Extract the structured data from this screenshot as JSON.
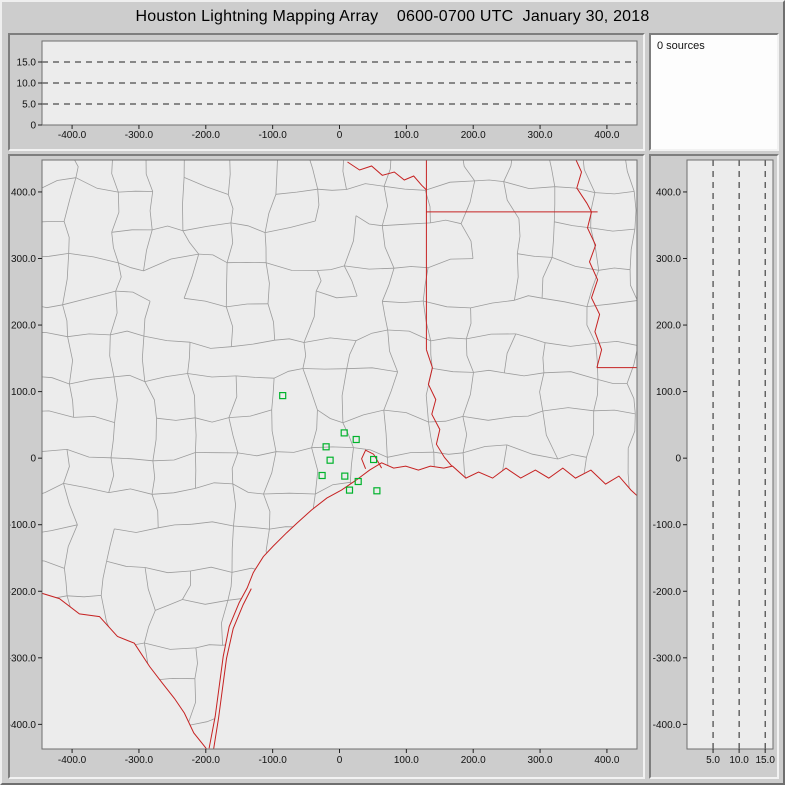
{
  "window": {
    "title": "Houston Lightning Mapping Array    0600-0700 UTC  January 30, 2018"
  },
  "sources_panel": {
    "label": "0 sources"
  },
  "colors": {
    "window_bg": "#cdcdcd",
    "plot_bg": "#ececec",
    "frame": "#6e6e6e",
    "tick": "#222222",
    "grid_dash": "#222222",
    "county": "#9c9c9c",
    "state": "#c62222",
    "station": "#00b32c"
  },
  "chart_data": [
    {
      "id": "altitude-vs-ew",
      "type": "scatter",
      "title": "",
      "xlabel": "",
      "ylabel": "",
      "xlim": [
        -445,
        445
      ],
      "ylim": [
        0,
        20
      ],
      "x_ticks": [
        {
          "v": -400,
          "label": "-400.0"
        },
        {
          "v": -300,
          "label": "-300.0"
        },
        {
          "v": -200,
          "label": "-200.0"
        },
        {
          "v": -100,
          "label": "-100.0"
        },
        {
          "v": 0,
          "label": "0"
        },
        {
          "v": 100,
          "label": "100.0"
        },
        {
          "v": 200,
          "label": "200.0"
        },
        {
          "v": 300,
          "label": "300.0"
        },
        {
          "v": 400,
          "label": "400.0"
        }
      ],
      "y_ticks": [
        {
          "v": 15,
          "label": "15.0"
        },
        {
          "v": 10,
          "label": "10.0"
        },
        {
          "v": 5,
          "label": "5.0"
        },
        {
          "v": 0,
          "label": "0"
        }
      ],
      "dashed_y": [
        5,
        10,
        15
      ],
      "points": []
    },
    {
      "id": "plan-view-map",
      "type": "scatter",
      "title": "",
      "xlabel": "",
      "ylabel": "",
      "xlim": [
        -445,
        445
      ],
      "ylim": [
        -437,
        448
      ],
      "x_ticks": [
        {
          "v": -400,
          "label": "-400.0"
        },
        {
          "v": -300,
          "label": "-300.0"
        },
        {
          "v": -200,
          "label": "-200.0"
        },
        {
          "v": -100,
          "label": "-100.0"
        },
        {
          "v": 0,
          "label": "0"
        },
        {
          "v": 100,
          "label": "100.0"
        },
        {
          "v": 200,
          "label": "200.0"
        },
        {
          "v": 300,
          "label": "300.0"
        },
        {
          "v": 400,
          "label": "400.0"
        }
      ],
      "y_ticks": [
        {
          "v": 400,
          "label": "400.0"
        },
        {
          "v": 300,
          "label": "300.0"
        },
        {
          "v": 200,
          "label": "200.0"
        },
        {
          "v": 100,
          "label": "100.0"
        },
        {
          "v": 0,
          "label": "0"
        },
        {
          "v": -100,
          "label": "-100.0"
        },
        {
          "v": -200,
          "label": "-200.0"
        },
        {
          "v": -300,
          "label": "-300.0"
        },
        {
          "v": -400,
          "label": "-400.0"
        }
      ],
      "points": [],
      "layers": {
        "stations_km": [
          [
            -85,
            94
          ],
          [
            7,
            38
          ],
          [
            25,
            28
          ],
          [
            -20,
            17
          ],
          [
            -14,
            -3
          ],
          [
            51,
            -2
          ],
          [
            -26,
            -26
          ],
          [
            8,
            -27
          ],
          [
            28,
            -35
          ],
          [
            15,
            -48
          ],
          [
            56,
            -49
          ]
        ],
        "red_boundaries_km": {
          "coastline": [
            [
              -195,
              -436
            ],
            [
              -186,
              -388
            ],
            [
              -180,
              -343
            ],
            [
              -174,
              -298
            ],
            [
              -165,
              -253
            ],
            [
              -150,
              -217
            ],
            [
              -138,
              -195
            ],
            [
              -129,
              -172
            ],
            [
              -114,
              -148
            ],
            [
              -99,
              -132
            ],
            [
              -79,
              -112
            ],
            [
              -63,
              -97
            ],
            [
              -42,
              -78
            ],
            [
              -19,
              -60
            ],
            [
              3,
              -48
            ],
            [
              25,
              -33
            ],
            [
              45,
              -18
            ],
            [
              63,
              -7
            ],
            [
              81,
              -15
            ],
            [
              99,
              -12
            ],
            [
              118,
              -18
            ],
            [
              136,
              -12
            ],
            [
              156,
              -15
            ],
            [
              169,
              -12
            ],
            [
              189,
              -30
            ],
            [
              208,
              -21
            ],
            [
              229,
              -30
            ],
            [
              249,
              -15
            ],
            [
              271,
              -30
            ],
            [
              293,
              -18
            ],
            [
              313,
              -30
            ],
            [
              334,
              -15
            ],
            [
              353,
              -30
            ],
            [
              376,
              -18
            ],
            [
              398,
              -39
            ],
            [
              418,
              -27
            ],
            [
              436,
              -48
            ],
            [
              449,
              -60
            ]
          ],
          "rio_grande": [
            [
              -452,
              -201
            ],
            [
              -419,
              -211
            ],
            [
              -389,
              -234
            ],
            [
              -359,
              -238
            ],
            [
              -332,
              -268
            ],
            [
              -307,
              -278
            ],
            [
              -284,
              -313
            ],
            [
              -265,
              -338
            ],
            [
              -247,
              -361
            ],
            [
              -232,
              -383
            ],
            [
              -218,
              -413
            ],
            [
              -202,
              -433
            ],
            [
              -192,
              -446
            ]
          ],
          "barrier_island": [
            [
              -189,
              -442
            ],
            [
              -181,
              -391
            ],
            [
              -175,
              -346
            ],
            [
              -169,
              -301
            ],
            [
              -159,
              -256
            ],
            [
              -144,
              -220
            ],
            [
              -132,
              -196
            ]
          ],
          "galveston_bay": [
            [
              39,
              -16
            ],
            [
              33,
              -1
            ],
            [
              39,
              12
            ],
            [
              51,
              6
            ],
            [
              58,
              -6
            ],
            [
              63,
              -15
            ]
          ],
          "state_line_vertical": [
            [
              130,
              452
            ],
            [
              130,
              163
            ]
          ],
          "red_river": [
            [
              12,
              445
            ],
            [
              30,
              433
            ],
            [
              48,
              439
            ],
            [
              64,
              425
            ],
            [
              82,
              430
            ],
            [
              97,
              418
            ],
            [
              111,
              424
            ],
            [
              123,
              410
            ],
            [
              130,
              403
            ]
          ],
          "ar_la_border": [
            [
              130,
              370
            ],
            [
              386,
              370
            ]
          ],
          "mississippi_river": [
            [
              352,
              452
            ],
            [
              362,
              430
            ],
            [
              355,
              406
            ],
            [
              370,
              383
            ],
            [
              377,
              370
            ],
            [
              371,
              346
            ],
            [
              383,
              320
            ],
            [
              374,
              295
            ],
            [
              386,
              268
            ],
            [
              377,
              241
            ],
            [
              389,
              216
            ],
            [
              382,
              190
            ],
            [
              392,
              163
            ],
            [
              385,
              136
            ]
          ],
          "la_ms_border": [
            [
              385,
              136
            ],
            [
              449,
              136
            ]
          ],
          "sabine_river": [
            [
              130,
              163
            ],
            [
              139,
              136
            ],
            [
              133,
              111
            ],
            [
              144,
              88
            ],
            [
              138,
              66
            ],
            [
              150,
              43
            ],
            [
              145,
              21
            ],
            [
              157,
              1
            ],
            [
              168,
              -12
            ]
          ]
        }
      }
    },
    {
      "id": "altitude-vs-ns",
      "type": "scatter",
      "title": "",
      "xlabel": "",
      "ylabel": "",
      "xlim": [
        0,
        16.5
      ],
      "ylim": [
        -437,
        448
      ],
      "x_ticks": [
        {
          "v": 5,
          "label": "5.0"
        },
        {
          "v": 10,
          "label": "10.0"
        },
        {
          "v": 15,
          "label": "15.0"
        }
      ],
      "y_ticks": [
        {
          "v": 400,
          "label": "400.0"
        },
        {
          "v": 300,
          "label": "300.0"
        },
        {
          "v": 200,
          "label": "200.0"
        },
        {
          "v": 100,
          "label": "100.0"
        },
        {
          "v": 0,
          "label": "0"
        },
        {
          "v": -100,
          "label": "-100.0"
        },
        {
          "v": -200,
          "label": "-200.0"
        },
        {
          "v": -300,
          "label": "-300.0"
        },
        {
          "v": -400,
          "label": "-400.0"
        }
      ],
      "dashed_x": [
        5,
        10,
        15
      ],
      "points": []
    }
  ]
}
